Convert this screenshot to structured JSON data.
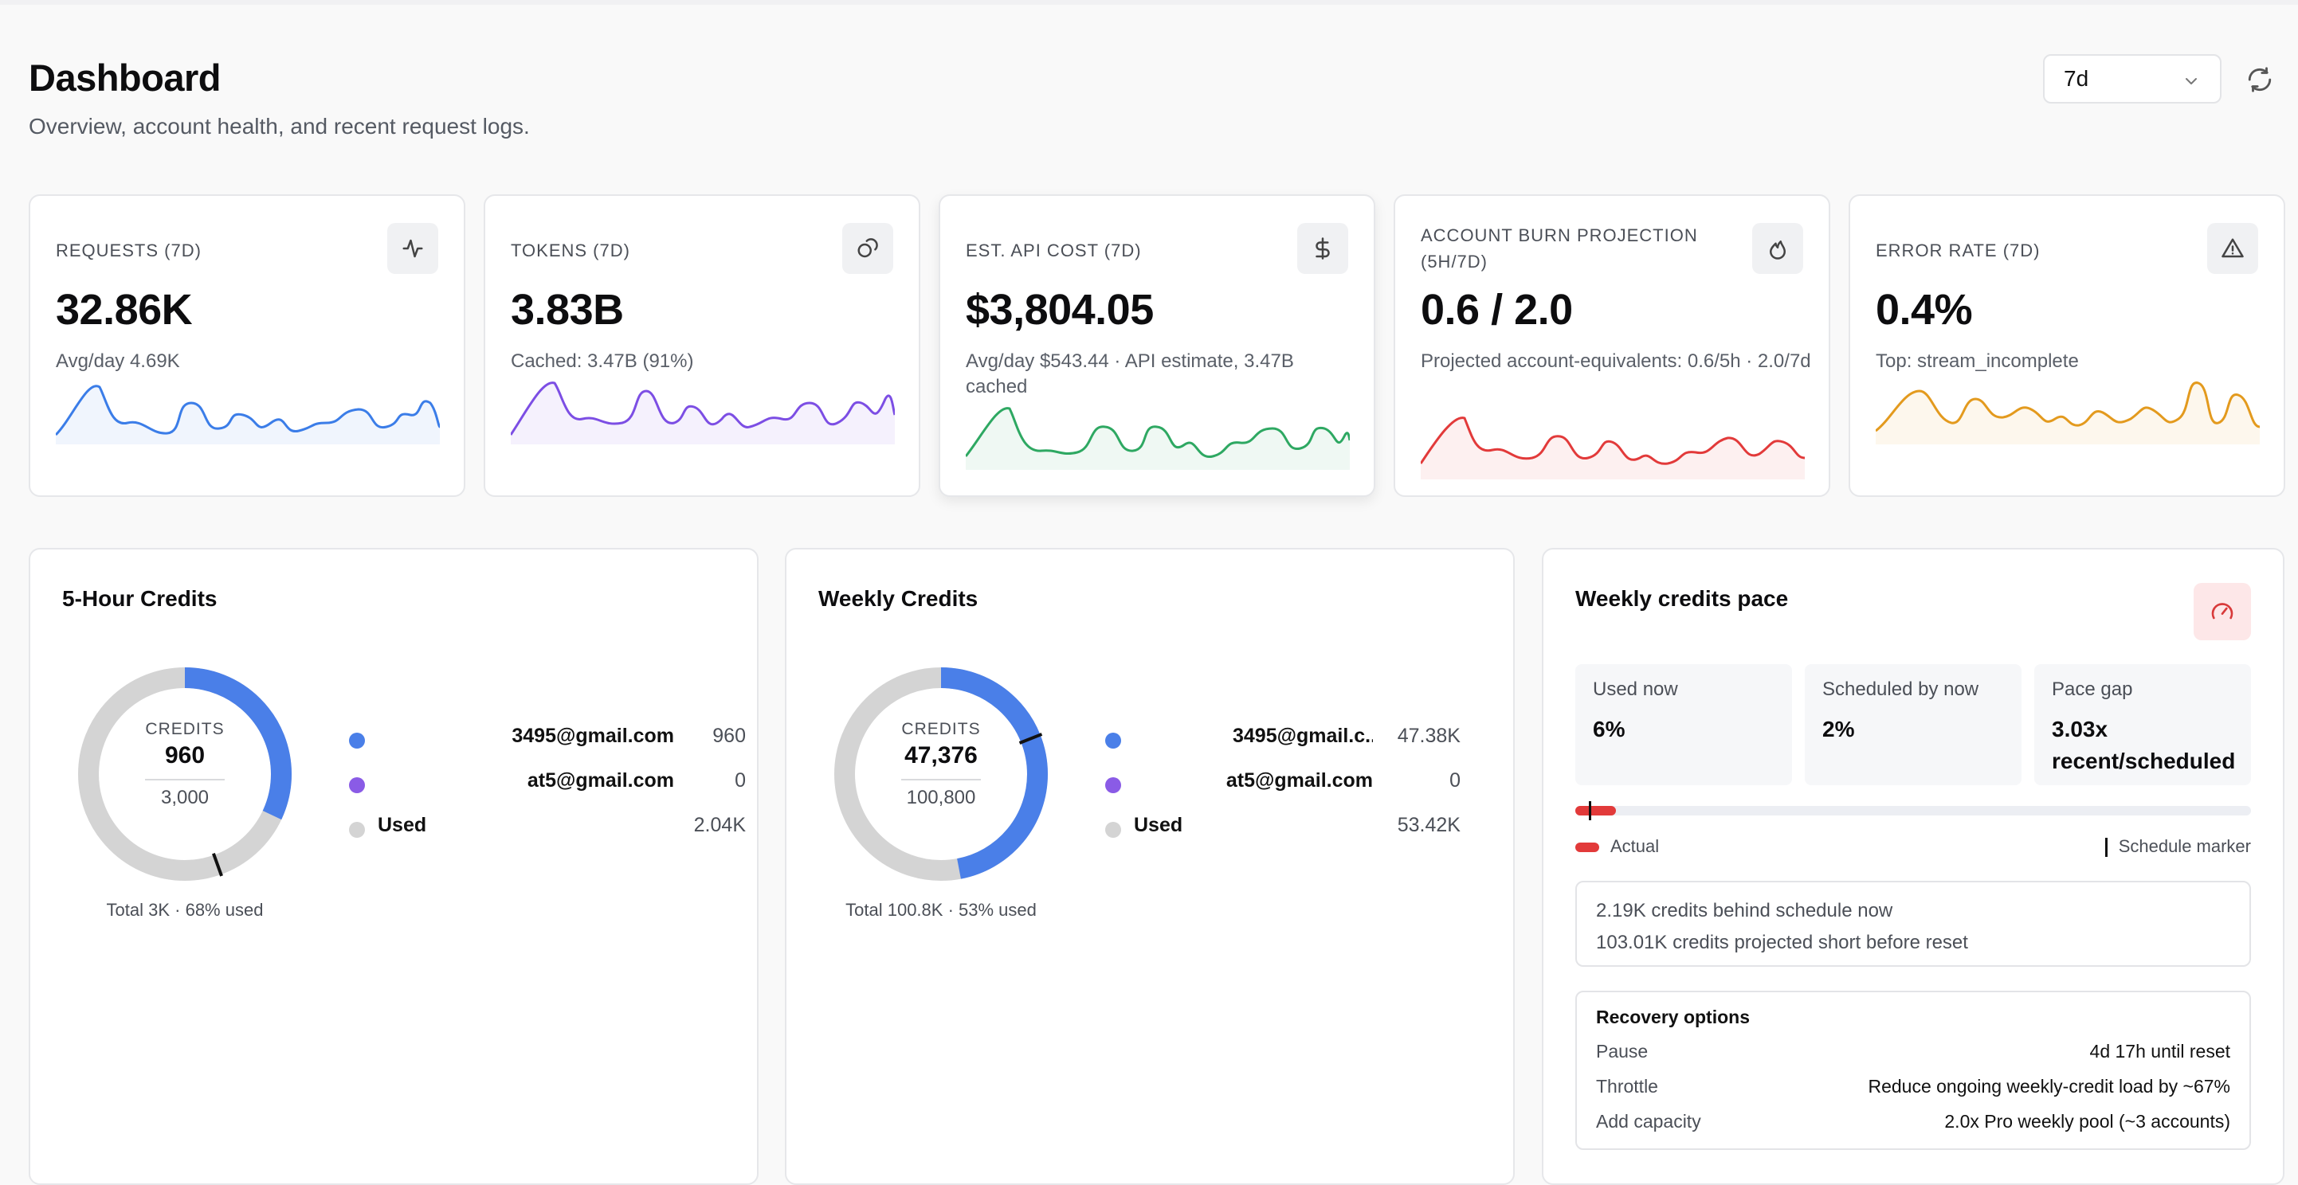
{
  "header": {
    "title": "Dashboard",
    "subtitle": "Overview, account health, and recent request logs.",
    "range_value": "7d"
  },
  "stats": [
    {
      "label": "REQUESTS (7D)",
      "value": "32.86K",
      "sub": "Avg/day 4.69K",
      "icon": "activity-icon",
      "color": "#3b7de8"
    },
    {
      "label": "TOKENS (7D)",
      "value": "3.83B",
      "sub": "Cached: 3.47B (91%)",
      "icon": "coins-icon",
      "color": "#7c4ee4"
    },
    {
      "label": "EST. API COST (7D)",
      "value": "$3,804.05",
      "sub": "Avg/day $543.44 · API estimate, 3.47B cached",
      "icon": "dollar-icon",
      "color": "#2ea862"
    },
    {
      "label": "ACCOUNT BURN PROJECTION (5H/7D)",
      "value": "0.6 / 2.0",
      "sub": "Projected account-equivalents: 0.6/5h · 2.0/7d",
      "icon": "flame-icon",
      "color": "#e23a3a"
    },
    {
      "label": "ERROR RATE (7D)",
      "value": "0.4%",
      "sub": "Top: stream_incomplete",
      "icon": "warning-icon",
      "color": "#e39a1e"
    }
  ],
  "five_hour": {
    "title": "5-Hour Credits",
    "center_label": "CREDITS",
    "center_value": "960",
    "center_total": "3,000",
    "footer": "Total 3K · 68% used",
    "used_fraction": 0.32,
    "legend": [
      {
        "name": "3495@gmail.com",
        "value": "960",
        "color": "#4a7fe8"
      },
      {
        "name": "at5@gmail.com",
        "value": "0",
        "color": "#8a5be6"
      },
      {
        "name": "Used",
        "value": "2.04K",
        "color": "#d4d4d4"
      }
    ]
  },
  "weekly": {
    "title": "Weekly Credits",
    "center_label": "CREDITS",
    "center_value": "47,376",
    "center_total": "100,800",
    "footer": "Total 100.8K · 53% used",
    "used_fraction": 0.47,
    "legend": [
      {
        "name": "3495@gmail.c...",
        "value": "47.38K",
        "color": "#4a7fe8"
      },
      {
        "name": "at5@gmail.com",
        "value": "0",
        "color": "#8a5be6"
      },
      {
        "name": "Used",
        "value": "53.42K",
        "color": "#d4d4d4"
      }
    ]
  },
  "pace": {
    "title": "Weekly credits pace",
    "used_now_label": "Used now",
    "used_now_value": "6%",
    "scheduled_label": "Scheduled by now",
    "scheduled_value": "2%",
    "gap_label": "Pace gap",
    "gap_value": "3.03x recent/scheduled",
    "actual_fraction": 0.06,
    "schedule_fraction": 0.02,
    "actual_label": "Actual",
    "marker_label": "Schedule marker",
    "info_line1": "2.19K credits behind schedule now",
    "info_line2": "103.01K credits projected short before reset",
    "recovery_title": "Recovery options",
    "recovery": [
      {
        "key": "Pause",
        "value": "4d 17h until reset"
      },
      {
        "key": "Throttle",
        "value": "Reduce ongoing weekly-credit load by ~67%"
      },
      {
        "key": "Add capacity",
        "value": "2.0x Pro weekly pool (~3 accounts)"
      }
    ]
  }
}
